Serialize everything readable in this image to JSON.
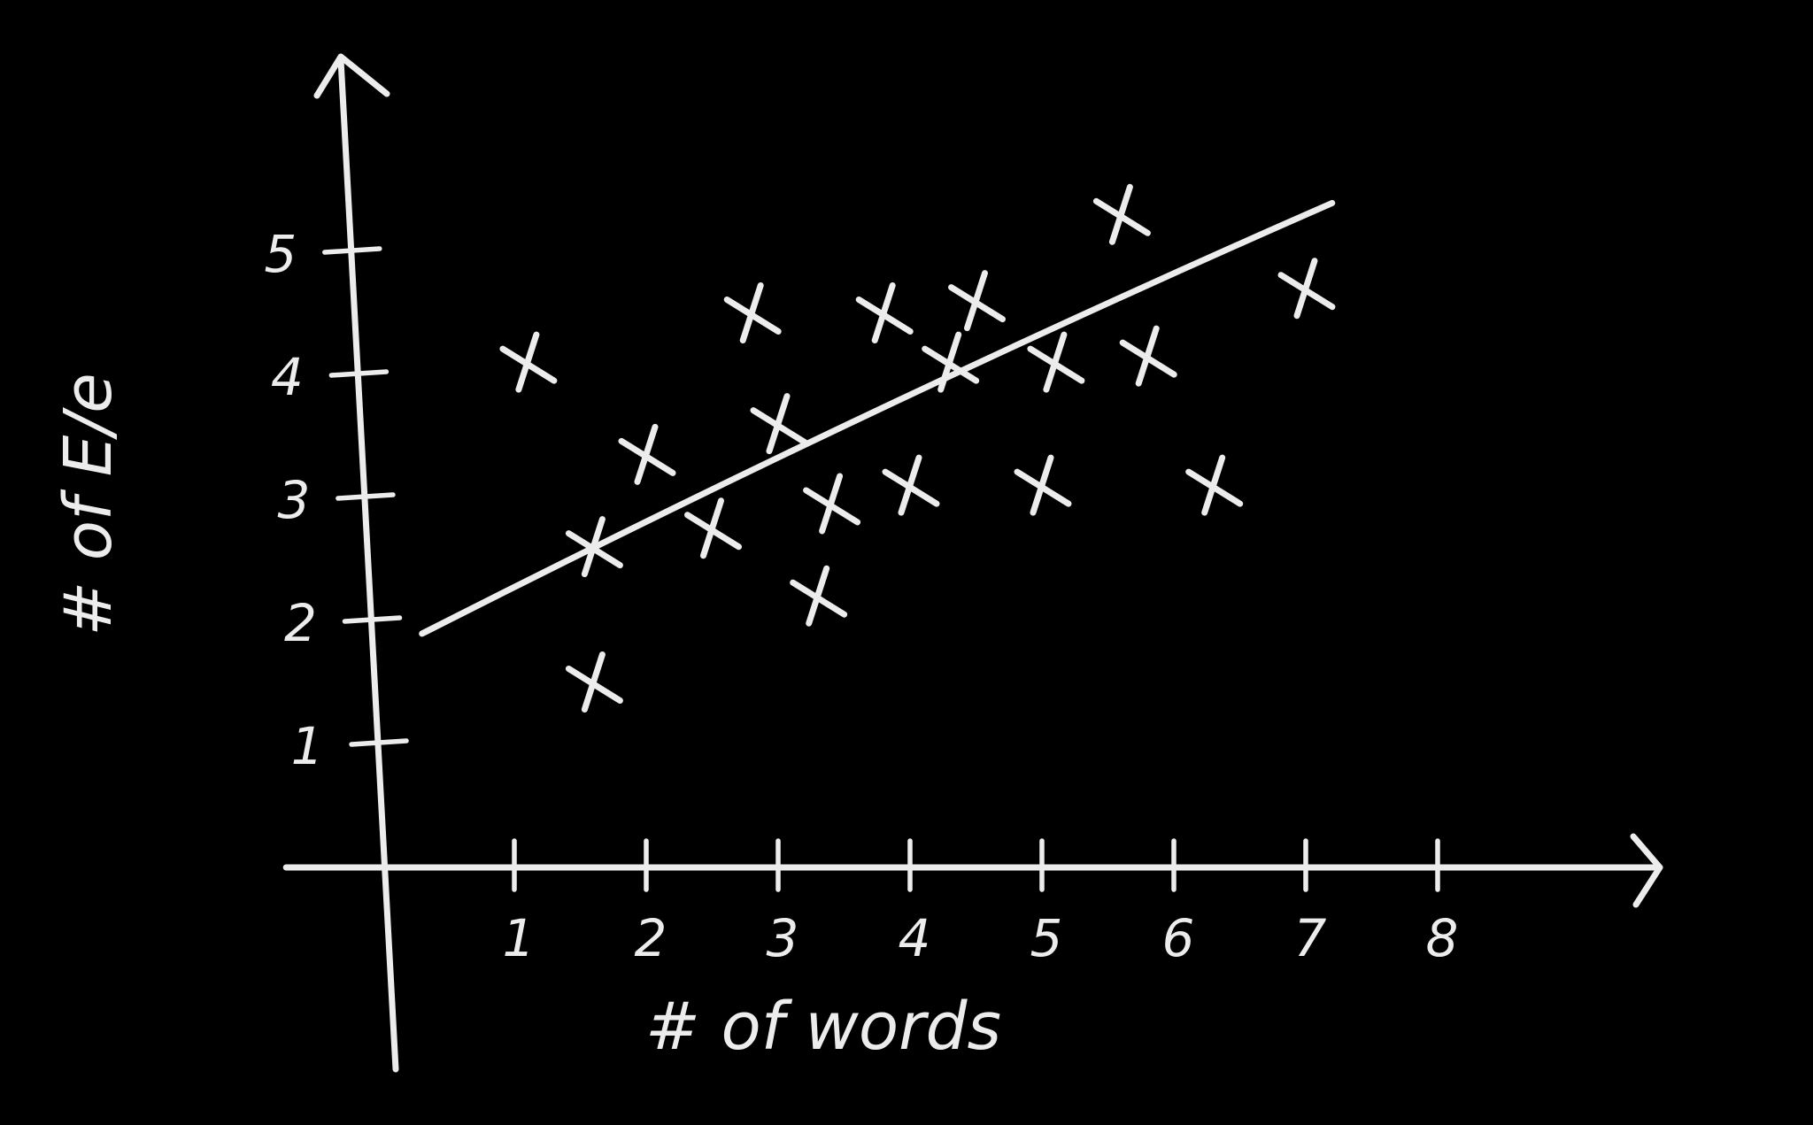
{
  "chart_data": {
    "type": "scatter",
    "title": "",
    "xlabel": "# of words",
    "ylabel": "# of E/e",
    "x_ticks": [
      "1",
      "2",
      "3",
      "4",
      "5",
      "6",
      "7",
      "8"
    ],
    "y_ticks": [
      "1",
      "2",
      "3",
      "4",
      "5"
    ],
    "xlim": [
      -1.2,
      9.2
    ],
    "ylim": [
      -0.8,
      6.5
    ],
    "grid": false,
    "legend": "none",
    "points": [
      {
        "x": 1.1,
        "y": 4.1
      },
      {
        "x": 1.6,
        "y": 1.5
      },
      {
        "x": 1.6,
        "y": 2.6
      },
      {
        "x": 2.0,
        "y": 3.35
      },
      {
        "x": 2.5,
        "y": 2.75
      },
      {
        "x": 2.8,
        "y": 4.5
      },
      {
        "x": 3.0,
        "y": 3.6
      },
      {
        "x": 3.3,
        "y": 2.2
      },
      {
        "x": 3.4,
        "y": 2.95
      },
      {
        "x": 3.8,
        "y": 4.5
      },
      {
        "x": 4.0,
        "y": 3.1
      },
      {
        "x": 4.3,
        "y": 4.1
      },
      {
        "x": 4.5,
        "y": 4.6
      },
      {
        "x": 5.0,
        "y": 3.1
      },
      {
        "x": 5.1,
        "y": 4.1
      },
      {
        "x": 5.6,
        "y": 5.3
      },
      {
        "x": 5.8,
        "y": 4.15
      },
      {
        "x": 6.3,
        "y": 3.1
      },
      {
        "x": 7.0,
        "y": 4.7
      }
    ],
    "trendline": {
      "x": [
        0.3,
        7.2
      ],
      "y": [
        1.9,
        5.4
      ]
    },
    "colors": {
      "background": "#000000",
      "ink": "#ececec"
    }
  }
}
